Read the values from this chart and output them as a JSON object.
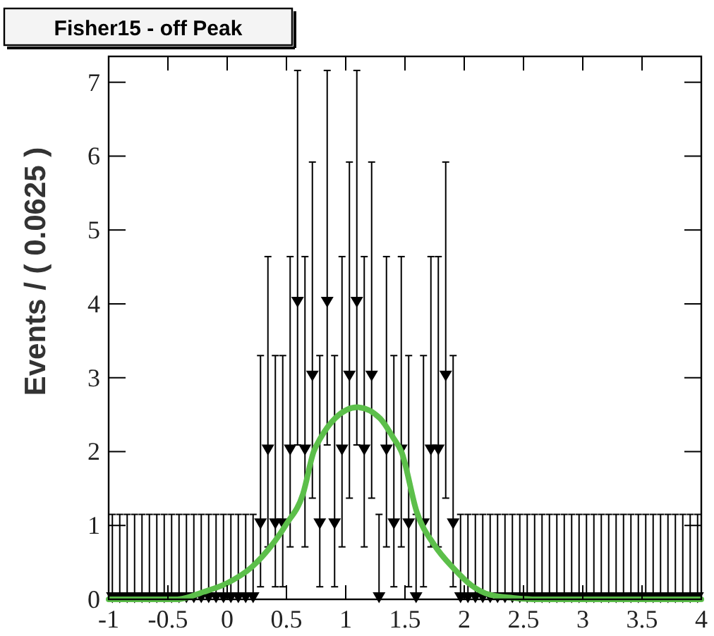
{
  "chart_data": {
    "type": "scatter",
    "title": "Fisher15 - off Peak",
    "ylabel": "Events / ( 0.0625 )",
    "xlim": [
      -1,
      4
    ],
    "ylim": [
      0,
      7.35
    ],
    "xticks": [
      -1,
      -0.5,
      0,
      0.5,
      1,
      1.5,
      2,
      2.5,
      3,
      3.5,
      4
    ],
    "yticks": [
      0,
      1,
      2,
      3,
      4,
      5,
      6,
      7
    ],
    "series": [
      {
        "marker": "triangle",
        "color": "#000000",
        "x": [
          -0.96875,
          -0.90625,
          -0.84375,
          -0.78125,
          -0.71875,
          -0.65625,
          -0.59375,
          -0.53125,
          -0.46875,
          -0.40625,
          -0.34375,
          -0.28125,
          -0.21875,
          -0.15625,
          -0.09375,
          -0.03125,
          0.03125,
          0.09375,
          0.15625,
          0.21875,
          0.28125,
          0.34375,
          0.40625,
          0.46875,
          0.53125,
          0.59375,
          0.65625,
          0.71875,
          0.78125,
          0.84375,
          0.90625,
          0.96875,
          1.03125,
          1.09375,
          1.15625,
          1.21875,
          1.28125,
          1.34375,
          1.40625,
          1.46875,
          1.53125,
          1.59375,
          1.65625,
          1.71875,
          1.78125,
          1.84375,
          1.90625,
          1.96875,
          2.03125,
          2.09375,
          2.15625,
          2.21875,
          2.28125,
          2.34375,
          2.40625,
          2.46875,
          2.53125,
          2.59375,
          2.65625,
          2.71875,
          2.78125,
          2.84375,
          2.90625,
          2.96875,
          3.03125,
          3.09375,
          3.15625,
          3.21875,
          3.28125,
          3.34375,
          3.40625,
          3.46875,
          3.53125,
          3.59375,
          3.65625,
          3.71875,
          3.78125,
          3.84375,
          3.90625,
          3.96875
        ],
        "values": [
          0,
          0,
          0,
          0,
          0,
          0,
          0,
          0,
          0,
          0,
          0,
          0,
          0,
          0,
          0,
          0,
          0,
          0,
          0,
          0,
          1,
          2,
          1,
          1,
          2,
          4,
          2,
          3,
          1,
          4,
          1,
          2,
          3,
          4,
          2,
          3,
          0,
          2,
          1,
          2,
          1,
          0,
          1,
          2,
          2,
          3,
          1,
          0,
          0,
          0,
          0,
          0,
          0,
          0,
          0,
          0,
          0,
          0,
          0,
          0,
          0,
          0,
          0,
          0,
          0,
          0,
          0,
          0,
          0,
          0,
          0,
          0,
          0,
          0,
          0,
          0,
          0,
          0,
          0,
          0
        ],
        "errors": [
          [
            0,
            1.15
          ],
          [
            0,
            1.15
          ],
          [
            0,
            1.15
          ],
          [
            0,
            1.15
          ],
          [
            0,
            1.15
          ],
          [
            0,
            1.15
          ],
          [
            0,
            1.15
          ],
          [
            0,
            1.15
          ],
          [
            0,
            1.15
          ],
          [
            0,
            1.15
          ],
          [
            0,
            1.15
          ],
          [
            0,
            1.15
          ],
          [
            0,
            1.15
          ],
          [
            0,
            1.15
          ],
          [
            0,
            1.15
          ],
          [
            0,
            1.15
          ],
          [
            0,
            1.15
          ],
          [
            0,
            1.15
          ],
          [
            0,
            1.15
          ],
          [
            0,
            1.15
          ],
          [
            0.17,
            3.3
          ],
          [
            0.71,
            4.64
          ],
          [
            0.17,
            3.3
          ],
          [
            0.17,
            3.3
          ],
          [
            0.71,
            4.64
          ],
          [
            2.09,
            7.16
          ],
          [
            0.71,
            4.64
          ],
          [
            1.37,
            5.92
          ],
          [
            0.17,
            3.3
          ],
          [
            2.09,
            7.16
          ],
          [
            0.17,
            3.3
          ],
          [
            0.71,
            4.64
          ],
          [
            1.37,
            5.92
          ],
          [
            2.09,
            7.16
          ],
          [
            0.71,
            4.64
          ],
          [
            1.37,
            5.92
          ],
          [
            0,
            1.15
          ],
          [
            0.71,
            4.64
          ],
          [
            0.17,
            3.3
          ],
          [
            0.71,
            4.64
          ],
          [
            0.17,
            3.3
          ],
          [
            0,
            1.15
          ],
          [
            0.17,
            3.3
          ],
          [
            0.71,
            4.64
          ],
          [
            0.71,
            4.64
          ],
          [
            1.37,
            5.92
          ],
          [
            0.17,
            3.3
          ],
          [
            0,
            1.15
          ],
          [
            0,
            1.15
          ],
          [
            0,
            1.15
          ],
          [
            0,
            1.15
          ],
          [
            0,
            1.15
          ],
          [
            0,
            1.15
          ],
          [
            0,
            1.15
          ],
          [
            0,
            1.15
          ],
          [
            0,
            1.15
          ],
          [
            0,
            1.15
          ],
          [
            0,
            1.15
          ],
          [
            0,
            1.15
          ],
          [
            0,
            1.15
          ],
          [
            0,
            1.15
          ],
          [
            0,
            1.15
          ],
          [
            0,
            1.15
          ],
          [
            0,
            1.15
          ],
          [
            0,
            1.15
          ],
          [
            0,
            1.15
          ],
          [
            0,
            1.15
          ],
          [
            0,
            1.15
          ],
          [
            0,
            1.15
          ],
          [
            0,
            1.15
          ],
          [
            0,
            1.15
          ],
          [
            0,
            1.15
          ],
          [
            0,
            1.15
          ],
          [
            0,
            1.15
          ],
          [
            0,
            1.15
          ],
          [
            0,
            1.15
          ],
          [
            0,
            1.15
          ],
          [
            0,
            1.15
          ],
          [
            0,
            1.15
          ],
          [
            0,
            1.15
          ]
        ]
      },
      {
        "type": "line",
        "color": "#5cbf4a",
        "x": [
          -1,
          -0.42,
          -0.2,
          0,
          0.21,
          0.37,
          0.5,
          0.64,
          0.73,
          0.79,
          0.91,
          1.1,
          1.29,
          1.4,
          1.47,
          1.6,
          1.75,
          1.91,
          2.06,
          2.22,
          2.41,
          2.62,
          4
        ],
        "values": [
          0,
          0,
          0.1,
          0.22,
          0.44,
          0.72,
          1.02,
          1.43,
          2.0,
          2.19,
          2.45,
          2.6,
          2.45,
          2.19,
          2.0,
          1.18,
          0.73,
          0.42,
          0.19,
          0.06,
          0.02,
          0,
          0
        ]
      }
    ]
  }
}
